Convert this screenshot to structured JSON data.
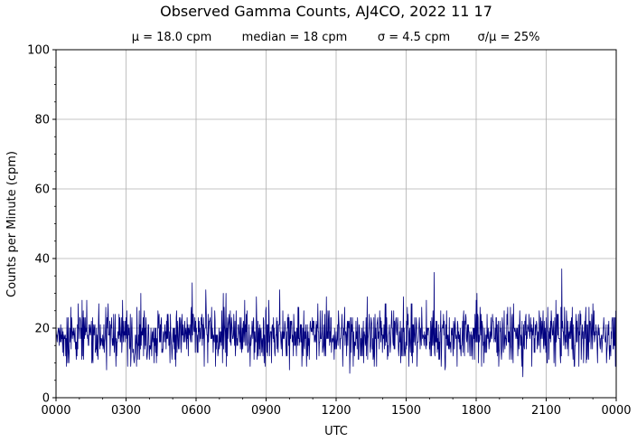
{
  "chart_data": {
    "type": "line",
    "title": "Observed Gamma Counts, AJ4CO, 2022 11 17",
    "subtitle": [
      "μ = 18.0 cpm",
      "median = 18 cpm",
      "σ = 4.5 cpm",
      "σ/μ = 25%"
    ],
    "xlabel": "UTC",
    "ylabel": "Counts per Minute (cpm)",
    "xlim": [
      0,
      1440
    ],
    "ylim": [
      0,
      100
    ],
    "grid": true,
    "x_tick_labels": [
      "0000",
      "0300",
      "0600",
      "0900",
      "1200",
      "1500",
      "1800",
      "2100",
      "0000"
    ],
    "y_tick_labels": [
      "0",
      "20",
      "40",
      "60",
      "80",
      "100"
    ],
    "series": [
      {
        "color": "#00007f",
        "sampling": "one value per minute, 0000–2359 UTC",
        "stats": {
          "mean": 18.0,
          "median": 18,
          "std": 4.5
        },
        "notable_points": [
          {
            "x": 218,
            "y": 30
          },
          {
            "x": 350,
            "y": 33
          },
          {
            "x": 385,
            "y": 31
          },
          {
            "x": 430,
            "y": 30
          },
          {
            "x": 437,
            "y": 30
          },
          {
            "x": 515,
            "y": 29
          },
          {
            "x": 575,
            "y": 31
          },
          {
            "x": 695,
            "y": 29
          },
          {
            "x": 800,
            "y": 29
          },
          {
            "x": 893,
            "y": 29
          },
          {
            "x": 972,
            "y": 36
          },
          {
            "x": 1082,
            "y": 30
          },
          {
            "x": 1200,
            "y": 6
          },
          {
            "x": 1300,
            "y": 37
          },
          {
            "x": 1380,
            "y": 27
          },
          {
            "x": 130,
            "y": 8
          },
          {
            "x": 600,
            "y": 8
          },
          {
            "x": 755,
            "y": 7
          },
          {
            "x": 1000,
            "y": 8
          }
        ]
      }
    ]
  }
}
